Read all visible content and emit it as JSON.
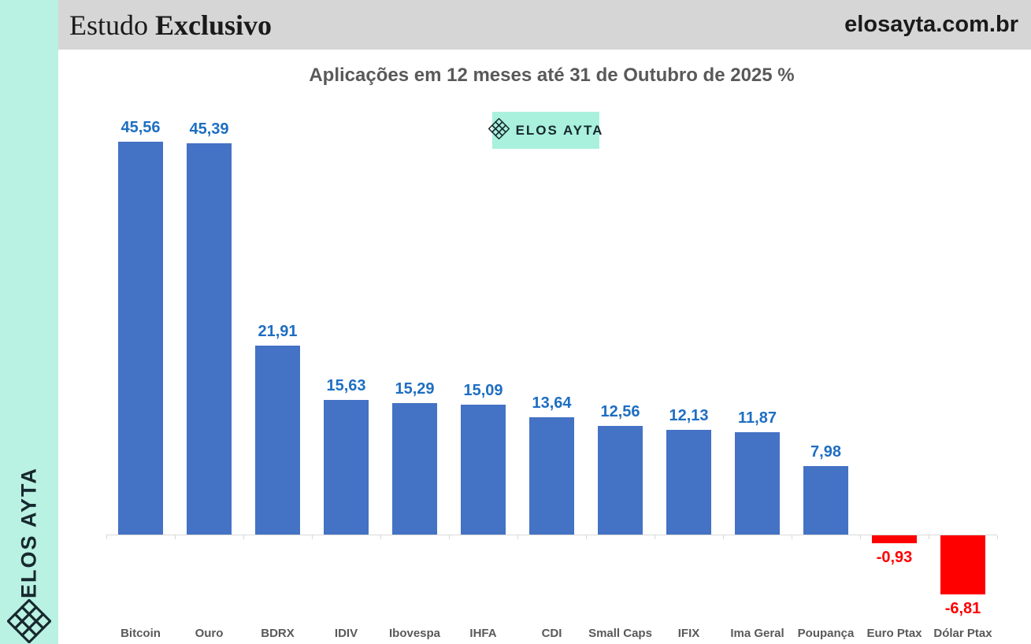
{
  "sidebar": {
    "brand": "ELOS AYTA",
    "bg_color": "#B9F1E3",
    "icon": "elos-ayta-lattice-icon"
  },
  "header": {
    "bg_color": "#D6D6D6",
    "masthead_regular": "Estudo",
    "masthead_bold": "Exclusivo",
    "site": "elosayta.com.br"
  },
  "badge": {
    "label": "ELOS AYTA",
    "bg_color": "#A9F1DD",
    "icon": "elos-ayta-lattice-icon"
  },
  "chart_data": {
    "type": "bar",
    "title": "Aplicações em 12 meses até 31 de Outubro de 2025 %",
    "categories": [
      "Bitcoin",
      "Ouro",
      "BDRX",
      "IDIV",
      "Ibovespa",
      "IHFA",
      "CDI",
      "Small Caps",
      "IFIX",
      "Ima Geral",
      "Poupança",
      "Euro Ptax",
      "Dólar Ptax"
    ],
    "values": [
      45.56,
      45.39,
      21.91,
      15.63,
      15.29,
      15.09,
      13.64,
      12.56,
      12.13,
      11.87,
      7.98,
      -0.93,
      -6.81
    ],
    "value_labels": [
      "45,56",
      "45,39",
      "21,91",
      "15,63",
      "15,29",
      "15,09",
      "13,64",
      "12,56",
      "12,13",
      "11,87",
      "7,98",
      "-0,93",
      "-6,81"
    ],
    "positive_bar_color": "#4472C4",
    "negative_bar_color": "#FF0000",
    "positive_label_color": "#1E6EC2",
    "negative_label_color": "#FF0000",
    "axis_color": "#D9D9D9",
    "ylim": [
      -10,
      50
    ],
    "grid": false,
    "legend": false,
    "xlabel": "",
    "ylabel": ""
  }
}
